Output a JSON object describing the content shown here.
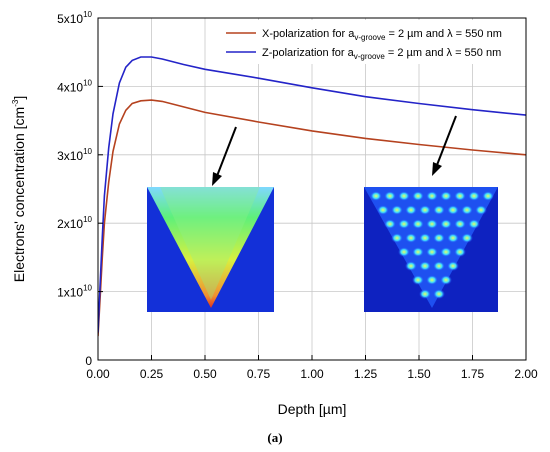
{
  "chart_data": {
    "type": "line",
    "xlabel": "Depth [µm]",
    "ylabel": "Electrons' concentration [cm",
    "ylabel_exp": "-3",
    "ylabel_tail": "]",
    "xlim": [
      0,
      2.0
    ],
    "ylim": [
      0,
      50000000000.0
    ],
    "grid": true,
    "legend_placement": "top-right",
    "x_ticks": [
      "0.00",
      "0.25",
      "0.50",
      "0.75",
      "1.00",
      "1.25",
      "1.50",
      "1.75",
      "2.00"
    ],
    "y_ticks": [
      {
        "base": "0",
        "exp": ""
      },
      {
        "base": "1x10",
        "exp": "10"
      },
      {
        "base": "2x10",
        "exp": "10"
      },
      {
        "base": "3x10",
        "exp": "10"
      },
      {
        "base": "4x10",
        "exp": "10"
      },
      {
        "base": "5x10",
        "exp": "10"
      }
    ],
    "x_tick_values": [
      0,
      0.25,
      0.5,
      0.75,
      1.0,
      1.25,
      1.5,
      1.75,
      2.0
    ],
    "y_tick_values": [
      0,
      10000000000.0,
      20000000000.0,
      30000000000.0,
      40000000000.0,
      50000000000.0
    ],
    "series": [
      {
        "name_prefix": "X-polarization for a",
        "name_sub": "v-groove",
        "name_suffix": " = 2 µm and λ = 550 nm",
        "color": "#b5421f",
        "x": [
          0.0,
          0.01,
          0.02,
          0.03,
          0.05,
          0.07,
          0.1,
          0.13,
          0.16,
          0.2,
          0.25,
          0.3,
          0.4,
          0.5,
          0.75,
          1.0,
          1.25,
          1.5,
          1.75,
          2.0
        ],
        "y": [
          3500000000.0,
          9000000000.0,
          15000000000.0,
          20000000000.0,
          26000000000.0,
          30500000000.0,
          34500000000.0,
          36500000000.0,
          37500000000.0,
          37900000000.0,
          38000000000.0,
          37800000000.0,
          37000000000.0,
          36200000000.0,
          34800000000.0,
          33500000000.0,
          32400000000.0,
          31500000000.0,
          30700000000.0,
          30000000000.0
        ]
      },
      {
        "name_prefix": "Z-polarization for a",
        "name_sub": "v-groove",
        "name_suffix": " = 2 µm and λ = 550 nm",
        "color": "#2424c8",
        "x": [
          0.0,
          0.01,
          0.02,
          0.03,
          0.05,
          0.07,
          0.1,
          0.13,
          0.16,
          0.2,
          0.25,
          0.3,
          0.4,
          0.5,
          0.75,
          1.0,
          1.25,
          1.5,
          1.75,
          2.0
        ],
        "y": [
          4000000000.0,
          11000000000.0,
          18000000000.0,
          24000000000.0,
          31000000000.0,
          36000000000.0,
          40500000000.0,
          42800000000.0,
          43800000000.0,
          44300000000.0,
          44300000000.0,
          44000000000.0,
          43200000000.0,
          42500000000.0,
          41200000000.0,
          39800000000.0,
          38500000000.0,
          37500000000.0,
          36600000000.0,
          35800000000.0
        ]
      }
    ]
  },
  "caption": "(a)"
}
